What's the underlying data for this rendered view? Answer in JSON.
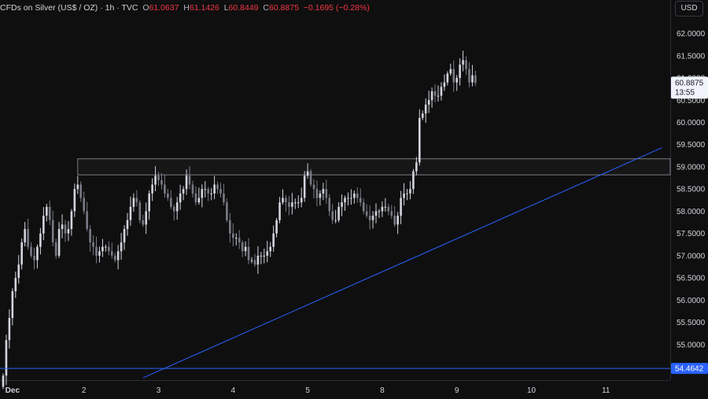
{
  "header": {
    "symbol": "CFDs on Silver (US$ / OZ)",
    "interval": "1h",
    "source": "TVC",
    "open_label": "O",
    "open": "61.0637",
    "high_label": "H",
    "high": "61.1426",
    "low_label": "L",
    "low": "60.8449",
    "close_label": "C",
    "close": "60.8875",
    "change": "−0.1695 (−0.28%)"
  },
  "currency_button": "USD",
  "colors": {
    "background": "#0f0f0f",
    "candle_up": "#d1d4dc",
    "candle_down": "#787b86",
    "trendline": "#2962ff",
    "support_line": "#2962ff",
    "price_tag": "#f0f3fa",
    "support_tag": "#2962ff"
  },
  "chart_data": {
    "type": "candlestick",
    "instrument": "CFDs on Silver (US$ / OZ)",
    "interval": "1h",
    "y_ticks": [
      "62.0000",
      "61.5000",
      "61.0000",
      "60.5000",
      "60.0000",
      "59.5000",
      "59.0000",
      "58.5000",
      "58.0000",
      "57.5000",
      "57.0000",
      "56.5000",
      "56.0000",
      "55.5000",
      "55.0000"
    ],
    "y_tick_values": [
      62.0,
      61.5,
      61.0,
      60.5,
      60.0,
      59.5,
      59.0,
      58.5,
      58.0,
      57.5,
      57.0,
      56.5,
      56.0,
      55.5,
      55.0
    ],
    "ylim": [
      54.2,
      62.4
    ],
    "x_ticks": [
      {
        "label": "Dec",
        "bar": 3
      },
      {
        "label": "2",
        "bar": 26
      },
      {
        "label": "3",
        "bar": 50
      },
      {
        "label": "4",
        "bar": 74
      },
      {
        "label": "5",
        "bar": 98
      },
      {
        "label": "8",
        "bar": 122
      },
      {
        "label": "9",
        "bar": 146
      },
      {
        "label": "10",
        "bar": 170
      },
      {
        "label": "11",
        "bar": 194
      }
    ],
    "last_price": "60.8875",
    "countdown": "13:55",
    "last_price_value": 60.8875,
    "support_level": "54.4642",
    "support_level_value": 54.4642,
    "resistance_zone": {
      "from_bar": 24,
      "low": 58.82,
      "high": 59.18
    },
    "trendline": {
      "bar1": 45,
      "price1": 54.25,
      "bar2": 212,
      "price2": 59.43
    },
    "closes": [
      54.3,
      55.1,
      55.6,
      56.2,
      56.5,
      56.8,
      57.3,
      57.6,
      57.2,
      57.0,
      56.9,
      57.2,
      57.5,
      57.9,
      58.1,
      57.8,
      57.3,
      57.0,
      57.6,
      57.7,
      57.5,
      57.6,
      58.0,
      58.5,
      58.6,
      58.3,
      58.0,
      57.6,
      57.3,
      57.2,
      57.0,
      57.1,
      57.2,
      57.2,
      57.1,
      57.0,
      56.9,
      57.1,
      57.3,
      57.6,
      57.8,
      58.1,
      58.3,
      58.2,
      57.8,
      57.7,
      58.0,
      58.4,
      58.6,
      58.8,
      58.7,
      58.6,
      58.4,
      58.3,
      58.1,
      58.0,
      58.2,
      58.4,
      58.5,
      58.8,
      58.6,
      58.4,
      58.2,
      58.3,
      58.5,
      58.5,
      58.4,
      58.4,
      58.6,
      58.5,
      58.4,
      58.2,
      57.8,
      57.5,
      57.4,
      57.4,
      57.3,
      57.1,
      57.2,
      56.9,
      56.9,
      56.8,
      57.0,
      57.0,
      57.0,
      57.1,
      57.2,
      57.5,
      57.8,
      58.2,
      58.3,
      58.2,
      58.1,
      58.2,
      58.2,
      58.2,
      58.3,
      58.8,
      58.9,
      58.6,
      58.5,
      58.3,
      58.4,
      58.5,
      58.3,
      58.0,
      57.8,
      57.8,
      58.1,
      58.2,
      58.3,
      58.3,
      58.3,
      58.4,
      58.3,
      58.2,
      58.0,
      57.9,
      57.8,
      57.9,
      58.0,
      58.0,
      58.1,
      58.1,
      58.0,
      57.9,
      57.7,
      57.9,
      58.3,
      58.4,
      58.4,
      58.5,
      58.9,
      59.1,
      60.1,
      60.2,
      60.4,
      60.5,
      60.7,
      60.6,
      60.6,
      60.8,
      60.9,
      61.1,
      61.2,
      60.9,
      61.0,
      61.3,
      61.4,
      61.2,
      60.9,
      61.06,
      60.89
    ]
  }
}
